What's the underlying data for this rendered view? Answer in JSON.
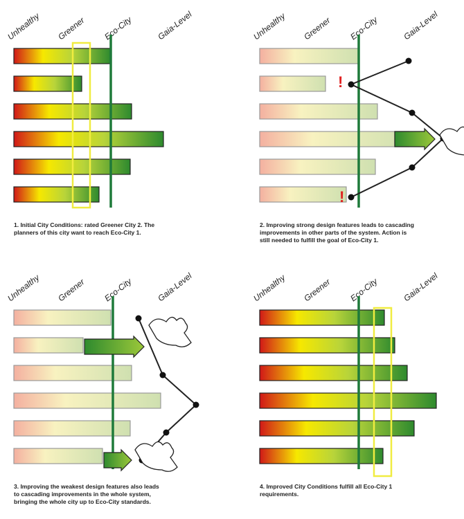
{
  "panels": [
    {
      "labels": [
        "Unhealthy",
        "Greener",
        "Eco-City",
        "Gaia-Level"
      ],
      "caption": [
        "1. Initial City Conditions: rated Greener City 2. The",
        "planners of this city want to reach Eco-City 1."
      ]
    },
    {
      "labels": [
        "Unhealthy",
        "Greener",
        "Eco-City",
        "Gaia-Level"
      ],
      "caption": [
        "2. Improving strong design features leads to cascading",
        "improvements in other parts of the system. Action is",
        "still needed to fulfill the goal of Eco-City 1."
      ],
      "alerts": [
        "!",
        "!"
      ]
    },
    {
      "labels": [
        "Unhealthy",
        "Greener",
        "Eco-City",
        "Gaia-Level"
      ],
      "caption": [
        "3. Improving the weakest design features also leads",
        "to cascading improvements in the whole system,",
        "bringing the whole city up to Eco-City standards."
      ]
    },
    {
      "labels": [
        "Unhealthy",
        "Greener",
        "Eco-City",
        "Gaia-Level"
      ],
      "caption": [
        "4. Improved City Conditions fulfill all Eco-City 1",
        "requirements."
      ]
    }
  ]
}
